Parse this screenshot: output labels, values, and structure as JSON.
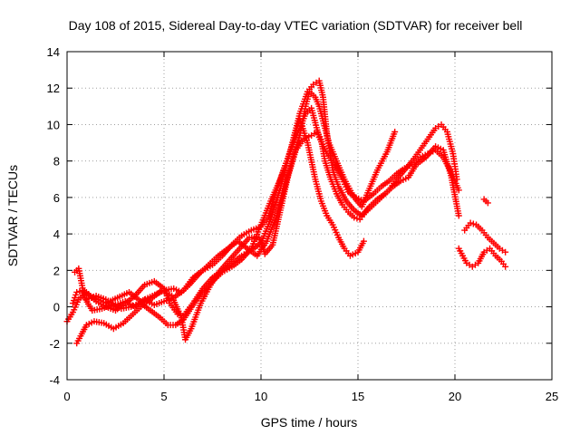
{
  "chart_data": {
    "type": "scatter",
    "title": "Day 108 of 2015, Sidereal Day-to-day VTEC variation (SDTVAR) for receiver bell",
    "xlabel": "GPS time / hours",
    "ylabel": "SDTVAR / TECUs",
    "xlim": [
      0,
      25
    ],
    "ylim": [
      -4,
      14
    ],
    "xticks": [
      0,
      5,
      10,
      15,
      20,
      25
    ],
    "yticks": [
      -4,
      -2,
      0,
      2,
      4,
      6,
      8,
      10,
      12,
      14
    ],
    "grid": true,
    "marker": "+",
    "color": "#ff0000",
    "series": [
      {
        "name": "track-1",
        "x": [
          0.0,
          0.3,
          0.6,
          1.0,
          1.5,
          2.0,
          2.5,
          3.0,
          3.5,
          4.0,
          4.5,
          5.0,
          5.3,
          5.7,
          6.0,
          6.5,
          7.0,
          7.5,
          8.0,
          8.5,
          9.0,
          9.5,
          10.0,
          10.5,
          11.0,
          11.5,
          12.0,
          12.4,
          12.8,
          13.1,
          13.4,
          13.7,
          14.0,
          14.3,
          14.6,
          15.0,
          15.3
        ],
        "y": [
          -0.8,
          -0.3,
          0.4,
          0.8,
          0.3,
          0.0,
          -0.2,
          0.2,
          0.6,
          1.2,
          1.4,
          1.0,
          0.2,
          -0.4,
          -0.5,
          0.2,
          1.0,
          1.6,
          2.0,
          2.4,
          2.8,
          3.1,
          3.5,
          4.8,
          6.5,
          8.5,
          10.3,
          9.0,
          7.0,
          5.8,
          5.0,
          4.5,
          3.8,
          3.2,
          2.8,
          3.0,
          3.6
        ]
      },
      {
        "name": "track-2",
        "x": [
          0.3,
          0.5,
          0.8,
          1.2,
          1.6,
          2.0,
          2.6,
          3.2,
          3.8,
          4.4,
          5.0,
          5.5,
          5.9,
          6.3,
          6.8,
          7.3,
          7.8,
          8.3,
          8.8,
          9.3,
          9.8,
          10.3,
          10.8,
          11.2,
          11.6,
          12.0,
          12.3,
          12.5,
          12.8,
          13.0,
          13.2,
          13.5,
          13.9,
          14.3,
          14.8,
          15.2,
          15.6,
          16.0,
          16.5,
          16.9
        ],
        "y": [
          0.2,
          0.8,
          0.9,
          0.6,
          0.4,
          0.2,
          0.5,
          0.8,
          0.3,
          0.6,
          0.9,
          1.0,
          0.8,
          1.2,
          1.8,
          2.3,
          2.8,
          3.2,
          3.6,
          3.2,
          2.8,
          3.6,
          5.0,
          6.5,
          8.0,
          9.4,
          11.0,
          11.8,
          11.5,
          11.0,
          10.2,
          9.0,
          8.0,
          7.0,
          6.0,
          5.5,
          6.5,
          7.5,
          8.5,
          9.6
        ]
      },
      {
        "name": "track-3",
        "x": [
          0.4,
          0.6,
          0.9,
          1.3,
          1.8,
          2.3,
          2.8,
          3.3,
          3.8,
          4.3,
          4.8,
          5.2,
          5.6,
          6.0,
          6.5,
          7.0,
          7.5,
          8.0,
          8.5,
          9.0,
          9.5,
          10.0,
          10.5,
          11.0,
          11.5,
          12.0,
          12.4,
          12.7,
          13.0,
          13.2,
          13.4,
          13.7,
          14.0,
          14.4,
          14.8,
          15.2,
          15.6,
          16.0,
          16.4,
          16.8,
          17.2,
          17.6,
          18.0,
          18.5,
          19.0,
          19.4,
          19.8,
          20.2
        ],
        "y": [
          1.9,
          2.1,
          0.5,
          -0.2,
          -0.1,
          0.1,
          -0.1,
          0.0,
          0.2,
          -0.2,
          -0.6,
          -1.0,
          -1.0,
          -0.7,
          0.1,
          0.8,
          1.4,
          1.9,
          2.2,
          2.6,
          3.2,
          4.5,
          5.8,
          7.0,
          8.5,
          10.6,
          11.8,
          12.2,
          12.4,
          11.5,
          9.5,
          7.5,
          6.6,
          5.8,
          5.3,
          5.0,
          5.5,
          5.9,
          6.2,
          6.6,
          6.9,
          7.1,
          7.8,
          8.2,
          8.8,
          8.6,
          7.2,
          5.0
        ]
      },
      {
        "name": "track-4",
        "x": [
          0.5,
          0.7,
          1.0,
          1.4,
          1.9,
          2.4,
          2.9,
          3.4,
          3.9,
          4.4,
          4.9,
          5.4,
          5.9,
          6.1,
          6.4,
          6.9,
          7.4,
          7.9,
          8.4,
          8.9,
          9.4,
          9.9,
          10.2,
          10.6,
          11.0,
          11.4,
          11.8,
          12.2,
          12.6,
          12.9,
          13.1,
          13.3,
          13.6,
          13.9,
          14.2,
          14.5,
          14.8,
          15.1,
          15.4,
          15.8,
          16.2,
          16.6,
          17.0,
          17.4,
          17.8,
          18.2,
          18.6,
          19.0,
          19.3,
          19.6,
          19.9,
          20.1
        ],
        "y": [
          -2.0,
          -1.6,
          -1.0,
          -0.8,
          -0.9,
          -1.2,
          -0.9,
          -0.4,
          0.1,
          0.5,
          0.9,
          0.6,
          -0.6,
          -1.8,
          -1.2,
          0.2,
          1.2,
          2.0,
          2.6,
          3.2,
          3.8,
          3.8,
          2.9,
          3.4,
          5.3,
          7.2,
          8.6,
          9.2,
          9.4,
          9.6,
          9.2,
          8.0,
          7.0,
          6.2,
          5.6,
          5.2,
          4.9,
          4.8,
          5.2,
          5.6,
          6.0,
          6.4,
          7.0,
          7.5,
          8.0,
          8.6,
          9.2,
          9.8,
          10.0,
          9.6,
          8.4,
          7.0
        ]
      },
      {
        "name": "track-5",
        "x": [
          1.0,
          1.5,
          2.0,
          2.5,
          3.0,
          3.5,
          4.0,
          4.5,
          5.0,
          5.5,
          6.0,
          6.5,
          7.0,
          7.5,
          8.0,
          8.5,
          9.0,
          9.5,
          10.0,
          10.4,
          10.8,
          11.2,
          11.6,
          12.0,
          12.3,
          12.6,
          13.0,
          13.4,
          13.8,
          14.2,
          14.5,
          14.9,
          15.3,
          15.8,
          16.2,
          16.6,
          17.0,
          17.4,
          17.8,
          18.2,
          18.6,
          19.0,
          19.4,
          19.8,
          20.2
        ],
        "y": [
          0.4,
          0.6,
          0.4,
          0.1,
          0.3,
          0.0,
          0.4,
          0.1,
          0.3,
          0.5,
          0.9,
          1.6,
          2.0,
          2.3,
          2.8,
          3.4,
          3.9,
          4.2,
          4.4,
          5.0,
          6.4,
          7.6,
          8.8,
          9.8,
          10.6,
          10.9,
          9.3,
          8.4,
          7.8,
          7.0,
          6.3,
          6.0,
          5.8,
          6.2,
          6.6,
          6.9,
          7.3,
          7.6,
          7.8,
          8.2,
          8.4,
          8.6,
          8.2,
          7.4,
          6.4
        ]
      },
      {
        "name": "track-6",
        "x": [
          20.2,
          20.4,
          20.6,
          20.9,
          21.2,
          21.5,
          21.8,
          22.1,
          22.4,
          22.6
        ],
        "y": [
          3.2,
          2.8,
          2.4,
          2.2,
          2.4,
          3.0,
          3.2,
          2.8,
          2.5,
          2.2
        ]
      },
      {
        "name": "track-7",
        "x": [
          20.5,
          20.8,
          21.1,
          21.4,
          21.7,
          22.0,
          22.3,
          22.6
        ],
        "y": [
          4.2,
          4.6,
          4.5,
          4.2,
          3.8,
          3.5,
          3.2,
          3.0
        ]
      },
      {
        "name": "track-8",
        "x": [
          21.5,
          21.6,
          21.7
        ],
        "y": [
          5.9,
          5.8,
          5.7
        ]
      }
    ]
  }
}
